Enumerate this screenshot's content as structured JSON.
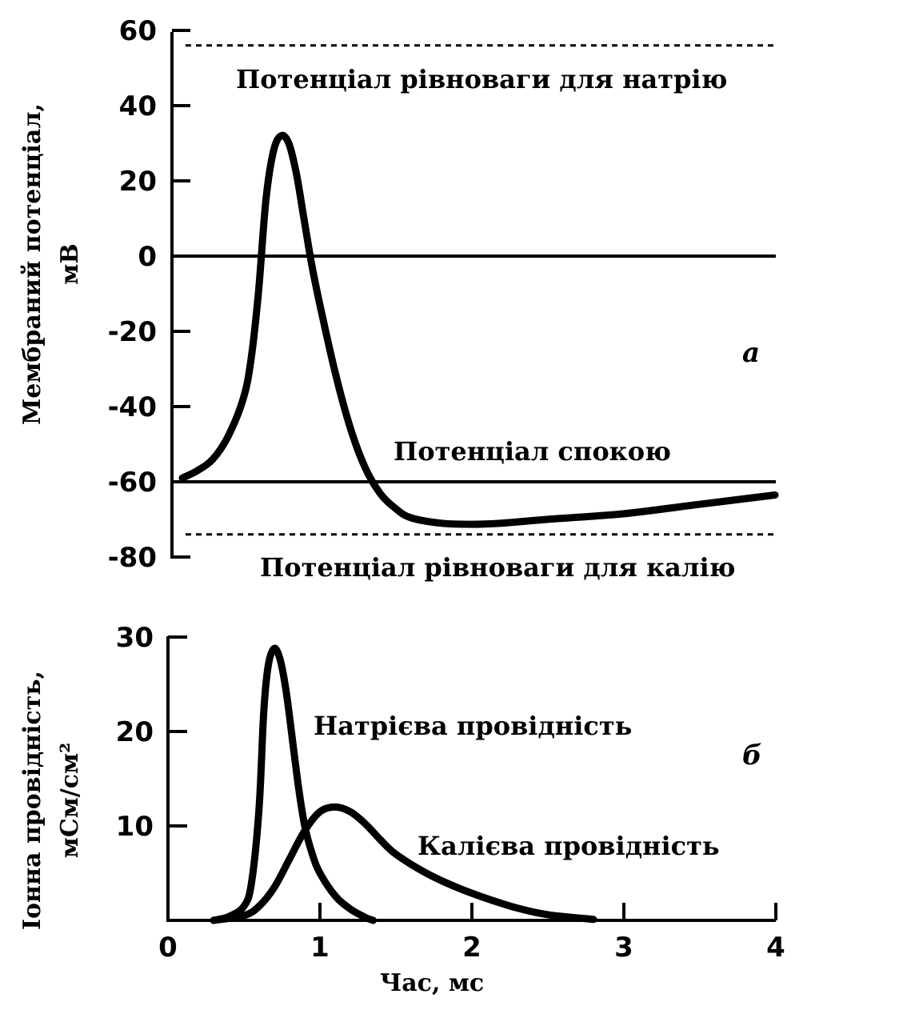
{
  "chart_data": [
    {
      "type": "line",
      "panel_label": "а",
      "ylabel_line1": "Мембраний потенціал,",
      "ylabel_line2": "мВ",
      "xlim": [
        0,
        4
      ],
      "ylim": [
        -80,
        60
      ],
      "yticks": [
        "60",
        "40",
        "20",
        "0",
        "-20",
        "-40",
        "-60",
        "-80"
      ],
      "ytick_values": [
        60,
        40,
        20,
        0,
        -20,
        -40,
        -60,
        -80
      ],
      "reference_lines": [
        {
          "name": "sodium-equilibrium",
          "y": 56,
          "style": "dashed",
          "label": "Потенціал рівноваги для натрію"
        },
        {
          "name": "zero",
          "y": 0,
          "style": "solid",
          "label": ""
        },
        {
          "name": "resting",
          "y": -60,
          "style": "solid",
          "label": "Потенціал спокою"
        },
        {
          "name": "potassium-equilibrium",
          "y": -74,
          "style": "dashed",
          "label": "Потенціал рівноваги для калію"
        }
      ],
      "series": [
        {
          "x": [
            0.1,
            0.2,
            0.3,
            0.4,
            0.5,
            0.55,
            0.6,
            0.65,
            0.7,
            0.75,
            0.8,
            0.85,
            0.9,
            0.95,
            1.0,
            1.1,
            1.2,
            1.3,
            1.4,
            1.5,
            1.6,
            1.8,
            2.0,
            2.2,
            2.5,
            3.0,
            3.5,
            4.0
          ],
          "y": [
            -59,
            -57,
            -54,
            -48,
            -38,
            -28,
            -10,
            15,
            28,
            32,
            30,
            22,
            10,
            -2,
            -12,
            -30,
            -45,
            -56,
            -63,
            -67,
            -69.5,
            -71,
            -71.3,
            -71,
            -70,
            -68.5,
            -66,
            -63.5
          ]
        }
      ]
    },
    {
      "type": "line",
      "panel_label": "б",
      "ylabel_line1": "Іонна провідність,",
      "ylabel_line2": "мСм/см²",
      "xlabel": "Час, мс",
      "xlim": [
        0,
        4
      ],
      "ylim": [
        0,
        30
      ],
      "xticks": [
        "0",
        "1",
        "2",
        "3",
        "4"
      ],
      "xtick_values": [
        0,
        1,
        2,
        3,
        4
      ],
      "yticks": [
        "30",
        "20",
        "10"
      ],
      "ytick_values": [
        30,
        20,
        10
      ],
      "series": [
        {
          "name": "Натрієва провідність",
          "x": [
            0.3,
            0.4,
            0.5,
            0.55,
            0.6,
            0.63,
            0.66,
            0.7,
            0.74,
            0.78,
            0.82,
            0.86,
            0.9,
            0.95,
            1.0,
            1.1,
            1.2,
            1.3,
            1.35
          ],
          "y": [
            0,
            0.4,
            1.5,
            4,
            12,
            22,
            27,
            28.8,
            27.5,
            24,
            19,
            14,
            10,
            7,
            5,
            2.6,
            1.2,
            0.3,
            0
          ]
        },
        {
          "name": "Калієва провідність",
          "x": [
            0.3,
            0.5,
            0.6,
            0.7,
            0.8,
            0.9,
            1.0,
            1.1,
            1.2,
            1.3,
            1.4,
            1.5,
            1.7,
            1.9,
            2.1,
            2.3,
            2.5,
            2.8
          ],
          "y": [
            0,
            0.5,
            1.5,
            3.5,
            6.5,
            9.5,
            11.5,
            12,
            11.5,
            10.2,
            8.5,
            7,
            5,
            3.5,
            2.3,
            1.3,
            0.6,
            0.1
          ]
        }
      ]
    }
  ]
}
